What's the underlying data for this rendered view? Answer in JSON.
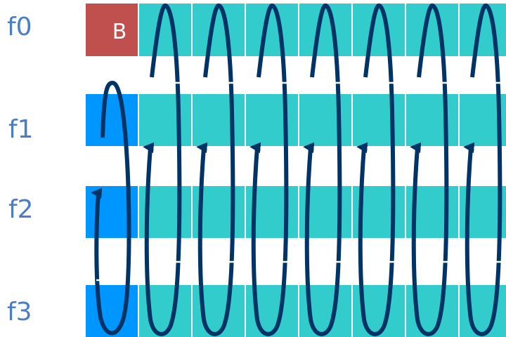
{
  "rows": [
    {
      "label": "f0"
    },
    {
      "label": "f1"
    },
    {
      "label": "f2"
    },
    {
      "label": "f3"
    }
  ],
  "first_cell_label": "B",
  "colors": {
    "row_label": "#4A7EC4",
    "marked_cell": "#C0504D",
    "leading_cell": "#0096FF",
    "cell": "#33CCCC",
    "loop": "#003366",
    "cell_text": "#FFFFFF"
  }
}
